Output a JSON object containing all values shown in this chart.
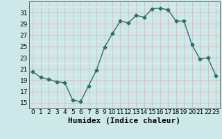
{
  "x": [
    0,
    1,
    2,
    3,
    4,
    5,
    6,
    7,
    8,
    9,
    10,
    11,
    12,
    13,
    14,
    15,
    16,
    17,
    18,
    19,
    20,
    21,
    22,
    23
  ],
  "y": [
    20.5,
    19.5,
    19.2,
    18.7,
    18.6,
    15.5,
    15.2,
    18.0,
    20.8,
    24.8,
    27.3,
    29.5,
    29.2,
    30.5,
    30.2,
    31.7,
    31.8,
    31.5,
    29.5,
    29.5,
    25.3,
    22.8,
    23.0,
    19.8
  ],
  "title": "",
  "xlabel": "Humidex (Indice chaleur)",
  "ylabel": "",
  "ylim": [
    14,
    33
  ],
  "xlim": [
    -0.5,
    23.5
  ],
  "yticks": [
    15,
    17,
    19,
    21,
    23,
    25,
    27,
    29,
    31
  ],
  "xticks": [
    0,
    1,
    2,
    3,
    4,
    5,
    6,
    7,
    8,
    9,
    10,
    11,
    12,
    13,
    14,
    15,
    16,
    17,
    18,
    19,
    20,
    21,
    22,
    23
  ],
  "line_color": "#2d6e6e",
  "marker": "D",
  "marker_size": 2.5,
  "bg_color": "#cce8e8",
  "grid_major_color": "#e8b4b4",
  "grid_minor_color": "#d8f0f0",
  "xlabel_fontsize": 8,
  "tick_fontsize": 6.5
}
